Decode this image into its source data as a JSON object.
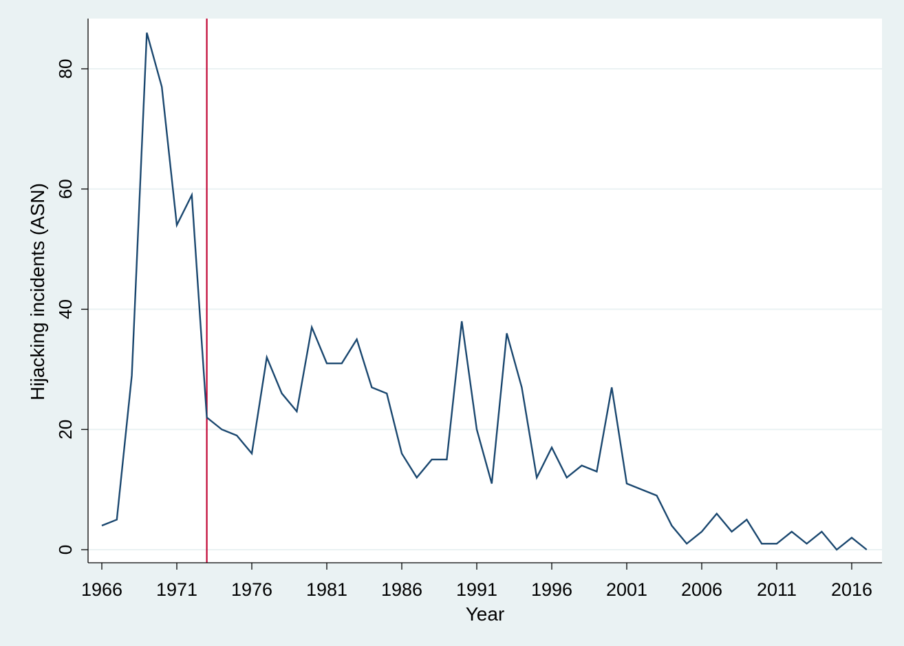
{
  "chart_data": {
    "type": "line",
    "title": "",
    "xlabel": "Year",
    "ylabel": "Hijacking incidents (ASN)",
    "xlim": [
      1966,
      2017
    ],
    "ylim": [
      0,
      88
    ],
    "xticks": [
      "1966",
      "1971",
      "1976",
      "1981",
      "1986",
      "1991",
      "1996",
      "2001",
      "2006",
      "2011",
      "2016"
    ],
    "yticks": [
      "0",
      "20",
      "40",
      "60",
      "80"
    ],
    "grid": true,
    "reference_line": {
      "x": 1973,
      "color": "#c10534"
    },
    "series": [
      {
        "name": "Hijacking incidents",
        "color": "#1a476f",
        "x": [
          1966,
          1967,
          1968,
          1969,
          1970,
          1971,
          1972,
          1973,
          1974,
          1975,
          1976,
          1977,
          1978,
          1979,
          1980,
          1981,
          1982,
          1983,
          1984,
          1985,
          1986,
          1987,
          1988,
          1989,
          1990,
          1991,
          1992,
          1993,
          1994,
          1995,
          1996,
          1997,
          1998,
          1999,
          2000,
          2001,
          2002,
          2003,
          2004,
          2005,
          2006,
          2007,
          2008,
          2009,
          2010,
          2011,
          2012,
          2013,
          2014,
          2015,
          2016,
          2017
        ],
        "values": [
          4,
          5,
          29,
          86,
          77,
          54,
          59,
          22,
          20,
          19,
          16,
          32,
          26,
          23,
          37,
          31,
          31,
          35,
          27,
          26,
          16,
          12,
          15,
          15,
          38,
          20,
          11,
          36,
          27,
          12,
          17,
          12,
          14,
          13,
          27,
          11,
          10,
          9,
          4,
          1,
          3,
          6,
          3,
          5,
          1,
          1,
          3,
          1,
          3,
          0,
          2,
          0
        ]
      }
    ]
  }
}
